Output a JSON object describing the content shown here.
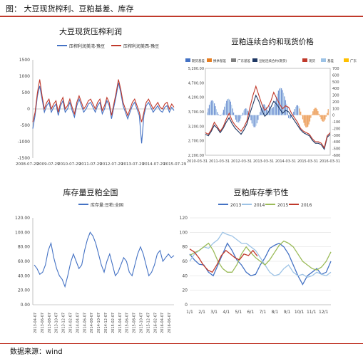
{
  "header": {
    "caption": "图：   大豆现货榨利、豆粕基差、库存"
  },
  "footer": {
    "source": "数据来源：wind"
  },
  "chart_data": [
    {
      "type": "line",
      "title": "大豆现货压榨利润",
      "legend": [
        "压榨利润美湾-豫豆",
        "压榨利润美西-豫豆"
      ],
      "legend_position": "top",
      "colors": [
        "#4472c4",
        "#c0392b"
      ],
      "ylim": [
        -1500,
        1500
      ],
      "yticks": [
        "1500",
        "1000",
        "500",
        "0",
        "-500",
        "-1000",
        "-1500"
      ],
      "xticks": [
        "2008-07-29",
        "2009-07-29",
        "2010-07-29",
        "2011-07-29",
        "2012-07-29",
        "2013-07-29",
        "2014-07-29",
        "2015-07-29"
      ],
      "series": [
        {
          "name": "压榨利润美湾-豫豆",
          "values": [
            -600,
            -200,
            400,
            700,
            300,
            -100,
            100,
            200,
            -100,
            50,
            150,
            -200,
            100,
            250,
            -100,
            0,
            200,
            -50,
            -250,
            100,
            300,
            100,
            -100,
            0,
            150,
            200,
            50,
            -100,
            100,
            200,
            -150,
            0,
            250,
            100,
            -300,
            50,
            400,
            800,
            500,
            100,
            -100,
            -300,
            -100,
            100,
            200,
            0,
            -200,
            -1050,
            -200,
            100,
            200,
            50,
            -100,
            0,
            100,
            -50,
            -100,
            50,
            100,
            -100,
            50,
            -50
          ]
        },
        {
          "name": "压榨利润美西-豫豆",
          "values": [
            -400,
            -100,
            500,
            900,
            400,
            0,
            200,
            300,
            0,
            150,
            250,
            -100,
            200,
            350,
            0,
            100,
            300,
            50,
            -150,
            200,
            400,
            200,
            0,
            100,
            250,
            300,
            150,
            0,
            200,
            300,
            -50,
            100,
            350,
            200,
            -200,
            150,
            500,
            900,
            600,
            200,
            0,
            -200,
            0,
            200,
            300,
            100,
            -100,
            -400,
            -100,
            200,
            300,
            150,
            0,
            100,
            200,
            50,
            0,
            150,
            200,
            0,
            150,
            50
          ]
        }
      ]
    },
    {
      "type": "line",
      "title": "豆粕连续合约和现货价格",
      "legend": [
        "期货基差",
        "换季基差",
        "广东基差",
        "豆粕连续合约(期货)",
        "现货",
        "基差",
        "广东"
      ],
      "legend_position": "top",
      "colors": [
        "#4472c4",
        "#e67e22",
        "#7f7f7f",
        "#1f3864",
        "#c0392b",
        "#9dc3e6",
        "#ffc000"
      ],
      "ylim_left": [
        2300,
        5200
      ],
      "yticks_left": [
        "5,200.00",
        "4,700.00",
        "4,200.00",
        "3,700.00",
        "3,200.00",
        "2,700.00",
        "2,200.00"
      ],
      "ylim_right": [
        -600,
        700
      ],
      "yticks_right": [
        "700",
        "600",
        "500",
        "400",
        "300",
        "200",
        "100",
        "0",
        "-100",
        "-200",
        "-300",
        "-400",
        "-500",
        "-600"
      ],
      "xticks": [
        "2010-03-31",
        "2011-03-31",
        "2012-03-31",
        "2013-03-31",
        "2014-03-31",
        "2015-03-31",
        "2016-03-31"
      ],
      "series": [
        {
          "name": "豆粕连续合约(期货)",
          "values": [
            3000,
            2950,
            3100,
            3300,
            3200,
            3050,
            3200,
            3400,
            3550,
            3350,
            3200,
            3100,
            3000,
            3150,
            3350,
            3700,
            4000,
            4300,
            4100,
            3800,
            3600,
            3700,
            3900,
            4100,
            4000,
            3850,
            3700,
            3800,
            3750,
            3600,
            3450,
            3300,
            3150,
            3050,
            3000,
            2950,
            2800,
            2700,
            2700,
            2650,
            2500,
            2900,
            3000
          ]
        },
        {
          "name": "现货",
          "values": [
            3050,
            3000,
            3150,
            3400,
            3250,
            3100,
            3250,
            3500,
            3700,
            3450,
            3300,
            3200,
            3100,
            3250,
            3450,
            3900,
            4300,
            4600,
            4300,
            4000,
            3800,
            3900,
            4100,
            4400,
            4200,
            4000,
            3850,
            3950,
            3900,
            3700,
            3550,
            3400,
            3200,
            3100,
            3050,
            3000,
            2850,
            2750,
            2750,
            2700,
            2550,
            2950,
            3050
          ]
        }
      ]
    },
    {
      "type": "line",
      "title": "库存量豆粕全国",
      "legend": [
        "库存量:豆粕:全国"
      ],
      "legend_position": "top",
      "colors": [
        "#4472c4"
      ],
      "ylim": [
        0,
        120
      ],
      "yticks": [
        "120.00",
        "100.00",
        "80.00",
        "60.00",
        "40.00",
        "20.00",
        "0.00"
      ],
      "xticks": [
        "2013-04-07",
        "2013-06-07",
        "2013-08-07",
        "2013-10-07",
        "2013-12-07",
        "2014-02-07",
        "2014-04-07",
        "2014-06-07",
        "2014-08-07",
        "2014-10-07",
        "2014-12-07",
        "2015-02-07",
        "2015-04-07",
        "2015-06-07",
        "2015-08-07",
        "2015-10-07",
        "2015-12-07",
        "2016-02-07",
        "2016-04-07",
        "2016-06-07"
      ],
      "series": [
        {
          "name": "库存量:豆粕:全国",
          "values": [
            55,
            50,
            42,
            45,
            55,
            75,
            85,
            65,
            50,
            40,
            35,
            25,
            40,
            58,
            70,
            60,
            50,
            55,
            75,
            90,
            100,
            95,
            85,
            70,
            55,
            45,
            60,
            70,
            55,
            40,
            45,
            55,
            65,
            60,
            45,
            40,
            55,
            70,
            80,
            70,
            55,
            40,
            45,
            55,
            70,
            75,
            60,
            65,
            70,
            65,
            68
          ]
        }
      ]
    },
    {
      "type": "line",
      "title": "豆粕库存季节性",
      "legend": [
        "2013",
        "2014",
        "2015",
        "2016"
      ],
      "legend_position": "top",
      "colors": [
        "#4472c4",
        "#9dc3e6",
        "#9bbb59",
        "#c0392b"
      ],
      "ylim": [
        0,
        120
      ],
      "yticks": [
        "120",
        "100",
        "80",
        "60",
        "40",
        "20",
        "0"
      ],
      "xticks": [
        "1/1",
        "2/1",
        "3/1",
        "4/1",
        "5/1",
        "6/1",
        "7/1",
        "8/1",
        "9/1",
        "10/1",
        "11/1",
        "12/1"
      ],
      "series": [
        {
          "name": "2013",
          "values": [
            70,
            62,
            56,
            55,
            45,
            40,
            55,
            70,
            85,
            75,
            62,
            55,
            45,
            40,
            42,
            55,
            65,
            78,
            82,
            85,
            80,
            70,
            55,
            40,
            28,
            40,
            45,
            50,
            42,
            45,
            60
          ]
        },
        {
          "name": "2014",
          "values": [
            60,
            70,
            75,
            80,
            78,
            85,
            90,
            100,
            97,
            95,
            90,
            85,
            85,
            80,
            75,
            65,
            55,
            45,
            40,
            42,
            50,
            55,
            45,
            40,
            42,
            38,
            40,
            45,
            42,
            40,
            45
          ]
        },
        {
          "name": "2015",
          "values": [
            68,
            72,
            75,
            80,
            85,
            75,
            60,
            50,
            45,
            45,
            55,
            70,
            80,
            72,
            65,
            60,
            55,
            62,
            72,
            82,
            88,
            85,
            80,
            70,
            60,
            55,
            50,
            48,
            52,
            60,
            73
          ]
        },
        {
          "name": "2016",
          "values": [
            77,
            73,
            65,
            55,
            48,
            45,
            55,
            68,
            75,
            70,
            65,
            62,
            70,
            68,
            75,
            67
          ]
        }
      ]
    }
  ]
}
